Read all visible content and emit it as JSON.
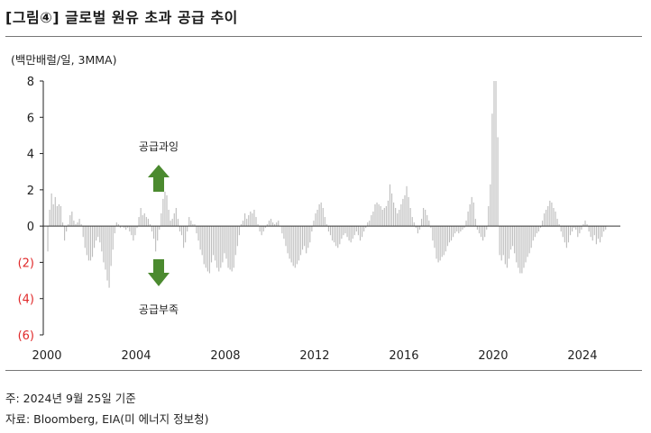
{
  "header": {
    "title": "[그림④] 글로벌 원유 초과 공급 추이"
  },
  "chart_data": {
    "type": "bar",
    "ylabel": "(백만배럴/일, 3MMA)",
    "ylim": [
      -6,
      8
    ],
    "y_ticks": [
      {
        "value": 8,
        "label": "8"
      },
      {
        "value": 6,
        "label": "6"
      },
      {
        "value": 4,
        "label": "4"
      },
      {
        "value": 2,
        "label": "2"
      },
      {
        "value": 0,
        "label": "0"
      },
      {
        "value": -2,
        "label": "(2)"
      },
      {
        "value": -4,
        "label": "(4)"
      },
      {
        "value": -6,
        "label": "(6)"
      }
    ],
    "x_ticks": [
      "2000",
      "2004",
      "2008",
      "2012",
      "2016",
      "2020",
      "2024"
    ],
    "x_range": [
      2000,
      2025.7
    ],
    "bar_color": "#bdbdbd",
    "negative_label_color": "#e0292a",
    "frequency": "monthly",
    "start": "2000-01",
    "values": [
      -1.4,
      0.9,
      1.8,
      1.2,
      1.6,
      1.1,
      1.2,
      1.1,
      0.2,
      -0.8,
      -0.3,
      0.1,
      0.6,
      0.8,
      0.3,
      0.1,
      0.2,
      0.4,
      0.1,
      -0.6,
      -1.2,
      -1.6,
      -1.9,
      -1.9,
      -1.7,
      -1.2,
      -0.8,
      -0.6,
      -0.9,
      -1.4,
      -2.0,
      -2.4,
      -3.0,
      -3.4,
      -2.2,
      -1.3,
      -0.4,
      0.2,
      0.1,
      -0.1,
      0.0,
      -0.1,
      -0.2,
      -0.1,
      -0.3,
      -0.5,
      -0.8,
      -0.5,
      -0.1,
      0.5,
      1.0,
      0.6,
      0.7,
      0.5,
      0.4,
      0.1,
      -0.3,
      -0.7,
      -1.4,
      -0.8,
      -0.2,
      0.7,
      1.5,
      1.9,
      1.7,
      0.9,
      0.3,
      0.4,
      0.7,
      1.0,
      0.4,
      -0.3,
      -0.5,
      -1.2,
      -0.9,
      -0.3,
      0.5,
      0.3,
      0.1,
      0.1,
      -0.4,
      -0.8,
      -1.3,
      -1.6,
      -2.1,
      -2.3,
      -2.5,
      -2.6,
      -2.0,
      -1.6,
      -1.9,
      -2.3,
      -2.5,
      -2.3,
      -2.0,
      -1.5,
      -1.8,
      -2.3,
      -2.4,
      -2.5,
      -2.3,
      -1.6,
      -1.1,
      -0.5,
      0.1,
      0.3,
      0.7,
      0.4,
      0.6,
      0.8,
      0.7,
      0.9,
      0.5,
      0.1,
      -0.3,
      -0.5,
      -0.3,
      -0.1,
      0.1,
      0.3,
      0.4,
      0.2,
      0.1,
      0.2,
      0.3,
      0.0,
      -0.4,
      -0.7,
      -1.1,
      -1.5,
      -1.8,
      -2.0,
      -2.2,
      -2.3,
      -2.1,
      -1.9,
      -1.6,
      -1.3,
      -1.1,
      -1.5,
      -1.2,
      -0.9,
      -0.3,
      0.3,
      0.7,
      0.9,
      1.2,
      1.3,
      1.0,
      0.5,
      0.1,
      -0.3,
      -0.5,
      -0.8,
      -0.9,
      -1.1,
      -1.2,
      -1.0,
      -0.7,
      -0.5,
      -0.4,
      -0.6,
      -0.8,
      -0.9,
      -0.7,
      -0.5,
      -0.3,
      -0.5,
      -0.8,
      -0.6,
      -0.3,
      -0.1,
      0.2,
      0.3,
      0.6,
      0.8,
      1.2,
      1.3,
      1.2,
      1.1,
      0.9,
      1.0,
      1.1,
      1.4,
      2.3,
      1.8,
      1.3,
      1.0,
      0.7,
      0.9,
      1.2,
      1.5,
      1.7,
      2.2,
      1.6,
      1.0,
      0.5,
      0.2,
      -0.1,
      -0.4,
      -0.2,
      0.4,
      1.0,
      0.9,
      0.6,
      0.3,
      -0.1,
      -0.8,
      -1.2,
      -1.8,
      -2.0,
      -1.9,
      -1.7,
      -1.6,
      -1.4,
      -1.1,
      -0.9,
      -0.8,
      -0.6,
      -0.4,
      -0.3,
      -0.4,
      -0.3,
      -0.2,
      -0.1,
      0.3,
      0.8,
      1.2,
      1.6,
      1.3,
      0.4,
      -0.2,
      -0.4,
      -0.6,
      -0.8,
      -0.6,
      -0.2,
      1.1,
      2.3,
      6.2,
      8.0,
      8.0,
      4.9,
      -1.6,
      -1.9,
      -1.6,
      -2.1,
      -2.3,
      -1.8,
      -1.3,
      -1.1,
      -1.5,
      -2.0,
      -2.3,
      -2.6,
      -2.6,
      -2.3,
      -2.0,
      -1.7,
      -1.5,
      -1.2,
      -0.8,
      -0.6,
      -0.4,
      -0.3,
      -0.1,
      0.3,
      0.7,
      0.9,
      1.1,
      1.4,
      1.3,
      1.0,
      0.8,
      0.4,
      0.1,
      -0.3,
      -0.6,
      -0.9,
      -1.2,
      -0.9,
      -0.5,
      -0.3,
      -0.1,
      -0.2,
      -0.6,
      -0.4,
      -0.2,
      0.1,
      0.3,
      0.1,
      -0.3,
      -0.6,
      -0.8,
      -0.5,
      -1.0,
      -0.7,
      -0.9,
      -0.6,
      -0.3,
      -0.2
    ],
    "annotations": [
      {
        "text": "공급과잉",
        "direction": "up",
        "color": "#4b8a2f"
      },
      {
        "text": "공급부족",
        "direction": "down",
        "color": "#4b8a2f"
      }
    ]
  },
  "footnotes": {
    "date_note": "주: 2024년 9월 25일 기준",
    "source": "자료: Bloomberg, EIA(미 에너지 정보청)"
  }
}
